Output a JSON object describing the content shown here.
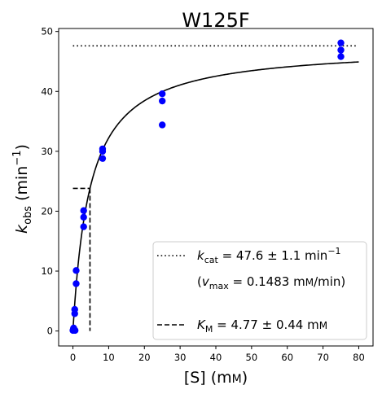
{
  "chart_data": {
    "type": "scatter",
    "title": "W125F",
    "xlabel": "[S] (mM)",
    "ylabel": "k_obs (min^-1)",
    "xlim": [
      -4,
      84
    ],
    "ylim": [
      -2.5,
      50.5
    ],
    "xticks": [
      0,
      10,
      20,
      30,
      40,
      50,
      60,
      70,
      80
    ],
    "yticks": [
      0,
      10,
      20,
      30,
      40,
      50
    ],
    "points": {
      "color": "#0000ff",
      "x": [
        0,
        0.1,
        0.2,
        0.3,
        0.5,
        0.5,
        0.6,
        0.9,
        0.9,
        3,
        3,
        3,
        8.3,
        8.3,
        8.3,
        25,
        25,
        25,
        75,
        75,
        75
      ],
      "y": [
        0.1,
        0.3,
        0.5,
        0.3,
        2.9,
        3.6,
        0.1,
        7.9,
        10.1,
        17.4,
        19,
        20.1,
        28.8,
        30,
        30.4,
        34.4,
        38.4,
        39.6,
        45.8,
        46.9,
        48.1
      ]
    },
    "fit": {
      "kcat": 47.6,
      "KM": 4.77,
      "x_start": 0,
      "x_end": 80,
      "color": "#000000"
    },
    "kcat_line": {
      "y": 47.6,
      "x_start": 0,
      "x_end": 79.5,
      "style": "dotted"
    },
    "km_line": {
      "x": 4.77,
      "y_half": 23.8,
      "x_start": 0,
      "style": "dashed"
    },
    "legend": {
      "placement": "lower-right",
      "kcat_label": "k_cat = 47.6 ± 1.1 min^-1",
      "vmax_label": "(v_max = 0.1483 mM/min)",
      "km_label": "K_M = 4.77 ± 0.44 mM"
    }
  }
}
